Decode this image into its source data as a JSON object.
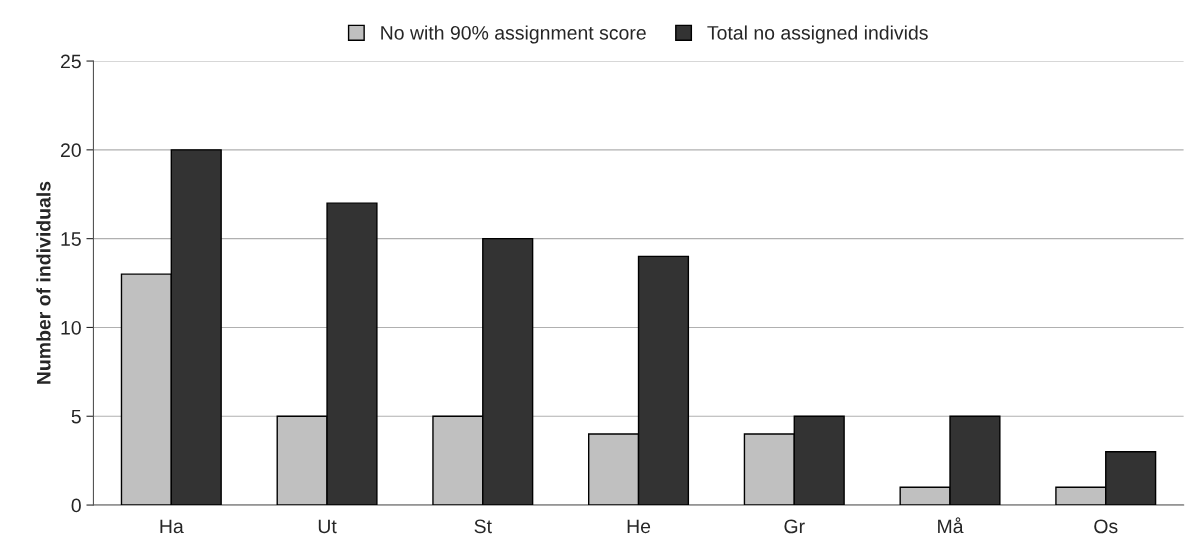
{
  "chart_data": {
    "type": "bar",
    "ylabel": "Number of individuals",
    "categories": [
      "Ha",
      "Ut",
      "St",
      "He",
      "Gr",
      "Må",
      "Os"
    ],
    "series": [
      {
        "name": "No with 90% assignment score",
        "color": "#c0c0c0",
        "values": [
          13,
          5,
          5,
          4,
          4,
          1,
          1
        ]
      },
      {
        "name": "Total no assigned individs",
        "color": "#333333",
        "values": [
          20,
          17,
          15,
          14,
          5,
          5,
          3
        ]
      }
    ],
    "ylim": [
      0,
      25
    ],
    "yticks": [
      0,
      5,
      10,
      15,
      20,
      25
    ],
    "grid": "y",
    "legend": "top"
  }
}
